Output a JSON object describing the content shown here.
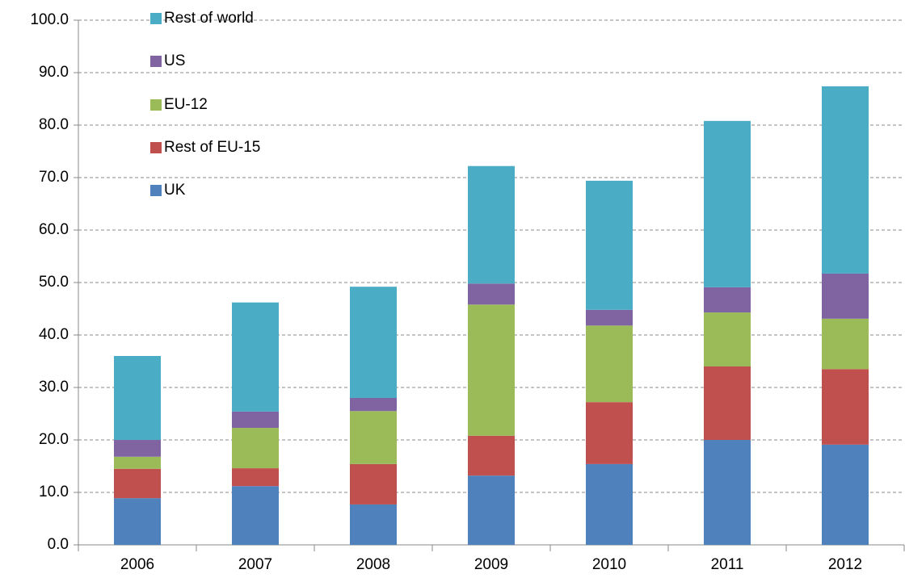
{
  "chart_data": {
    "type": "stacked_bar",
    "categories": [
      "2006",
      "2007",
      "2008",
      "2009",
      "2010",
      "2011",
      "2012"
    ],
    "series": [
      {
        "name": "UK",
        "color": "#4f81bd",
        "values": [
          8.9,
          11.2,
          7.7,
          13.2,
          15.4,
          20.0,
          19.1
        ]
      },
      {
        "name": "Rest of EU-15",
        "color": "#c0504d",
        "values": [
          5.6,
          3.4,
          7.7,
          7.6,
          11.8,
          14.0,
          14.4
        ]
      },
      {
        "name": "EU-12",
        "color": "#9bbb59",
        "values": [
          2.3,
          7.7,
          10.1,
          25.0,
          14.6,
          10.3,
          9.6
        ]
      },
      {
        "name": "US",
        "color": "#8064a2",
        "values": [
          3.2,
          3.1,
          2.5,
          4.0,
          3.0,
          4.8,
          8.6
        ]
      },
      {
        "name": "Rest of world",
        "color": "#4bacc6",
        "values": [
          16.0,
          20.8,
          21.2,
          22.4,
          24.6,
          31.7,
          35.7
        ]
      }
    ],
    "ylim": [
      0,
      100
    ],
    "yticks": [
      {
        "value": 0,
        "label": "0.0"
      },
      {
        "value": 10,
        "label": "10.0"
      },
      {
        "value": 20,
        "label": "20.0"
      },
      {
        "value": 30,
        "label": "30.0"
      },
      {
        "value": 40,
        "label": "40.0"
      },
      {
        "value": 50,
        "label": "50.0"
      },
      {
        "value": 60,
        "label": "60.0"
      },
      {
        "value": 70,
        "label": "70.0"
      },
      {
        "value": 80,
        "label": "80.0"
      },
      {
        "value": 90,
        "label": "90.0"
      },
      {
        "value": 100,
        "label": "100.0"
      }
    ],
    "grid": true,
    "legend": "top-left"
  }
}
